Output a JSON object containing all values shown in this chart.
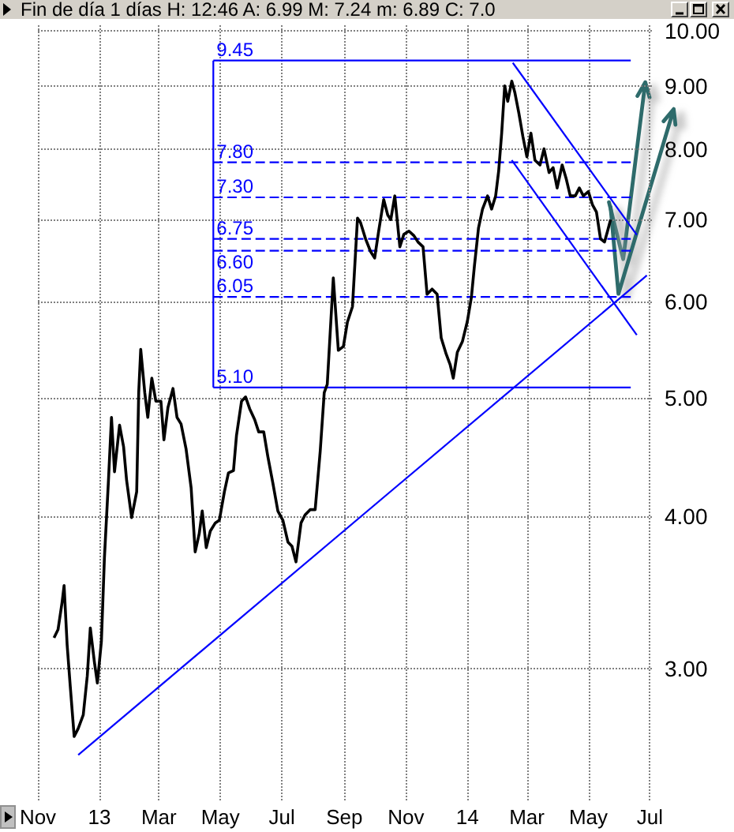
{
  "chart_data": {
    "type": "line",
    "title": "Fin de día 1 días H: 12:46 A: 6.99 M: 7.24 m: 6.89 C: 7.0",
    "log": "y",
    "grid": true,
    "marker": "none",
    "line_style": "solid",
    "xlim": [
      "2012-11-01",
      "2014-07-03"
    ],
    "xticks": [
      {
        "value": "2012-11-01",
        "label": "Nov"
      },
      {
        "value": "2013-01-01",
        "label": "13"
      },
      {
        "value": "2013-03-01",
        "label": "Mar"
      },
      {
        "value": "2013-05-01",
        "label": "May"
      },
      {
        "value": "2013-07-01",
        "label": "Jul"
      },
      {
        "value": "2013-09-01",
        "label": "Sep"
      },
      {
        "value": "2013-11-01",
        "label": "Nov"
      },
      {
        "value": "2014-01-01",
        "label": "14"
      },
      {
        "value": "2014-03-01",
        "label": "Mar"
      },
      {
        "value": "2014-05-01",
        "label": "May"
      },
      {
        "value": "2014-07-01",
        "label": "Jul"
      }
    ],
    "ylim": [
      2.34,
      10.1
    ],
    "yticks": [
      {
        "value": 3,
        "label": "3.00"
      },
      {
        "value": 4,
        "label": "4.00"
      },
      {
        "value": 5,
        "label": "5.00"
      },
      {
        "value": 6,
        "label": "6.00"
      },
      {
        "value": 7,
        "label": "7.00"
      },
      {
        "value": 8,
        "label": "8.00"
      },
      {
        "value": 9,
        "label": "9.00"
      },
      {
        "value": 10,
        "label": "10.00"
      }
    ],
    "series": [
      {
        "color": "#000000",
        "x": [
          "2012-11-17",
          "2012-11-21",
          "2012-11-25",
          "2012-11-27",
          "2012-11-30",
          "2012-12-03",
          "2012-12-07",
          "2012-12-11",
          "2012-12-16",
          "2012-12-20",
          "2012-12-23",
          "2012-12-27",
          "2012-12-30",
          "2013-01-03",
          "2013-01-06",
          "2013-01-10",
          "2013-01-13",
          "2013-01-16",
          "2013-01-21",
          "2013-01-25",
          "2013-01-28",
          "2013-02-02",
          "2013-02-07",
          "2013-02-09",
          "2013-02-11",
          "2013-02-15",
          "2013-02-18",
          "2013-02-22",
          "2013-02-26",
          "2013-03-03",
          "2013-03-06",
          "2013-03-10",
          "2013-03-15",
          "2013-03-19",
          "2013-03-23",
          "2013-03-28",
          "2013-04-02",
          "2013-04-06",
          "2013-04-10",
          "2013-04-13",
          "2013-04-17",
          "2013-04-21",
          "2013-04-26",
          "2013-04-30",
          "2013-05-05",
          "2013-05-09",
          "2013-05-14",
          "2013-05-17",
          "2013-05-22",
          "2013-05-26",
          "2013-05-30",
          "2013-06-04",
          "2013-06-08",
          "2013-06-13",
          "2013-06-17",
          "2013-06-22",
          "2013-06-27",
          "2013-07-02",
          "2013-07-07",
          "2013-07-11",
          "2013-07-15",
          "2013-07-20",
          "2013-07-24",
          "2013-07-29",
          "2013-08-03",
          "2013-08-08",
          "2013-08-12",
          "2013-08-15",
          "2013-08-21",
          "2013-08-26",
          "2013-08-31",
          "2013-09-04",
          "2013-09-09",
          "2013-09-14",
          "2013-09-17",
          "2013-09-22",
          "2013-09-27",
          "2013-10-01",
          "2013-10-05",
          "2013-10-10",
          "2013-10-14",
          "2013-10-17",
          "2013-10-21",
          "2013-10-26",
          "2013-10-30",
          "2013-11-04",
          "2013-11-09",
          "2013-11-13",
          "2013-11-18",
          "2013-11-22",
          "2013-11-27",
          "2013-12-02",
          "2013-12-06",
          "2013-12-11",
          "2013-12-15",
          "2013-12-18",
          "2013-12-22",
          "2013-12-27",
          "2014-01-01",
          "2014-01-05",
          "2014-01-08",
          "2014-01-12",
          "2014-01-16",
          "2014-01-21",
          "2014-01-25",
          "2014-01-29",
          "2014-02-01",
          "2014-02-04",
          "2014-02-07",
          "2014-02-10",
          "2014-02-14",
          "2014-02-17",
          "2014-02-21",
          "2014-02-25",
          "2014-03-01",
          "2014-03-05",
          "2014-03-09",
          "2014-03-14",
          "2014-03-18",
          "2014-03-23",
          "2014-03-27",
          "2014-03-31",
          "2014-04-05",
          "2014-04-09",
          "2014-04-13",
          "2014-04-18",
          "2014-04-22",
          "2014-04-26",
          "2014-05-01",
          "2014-05-05",
          "2014-05-09",
          "2014-05-13",
          "2014-05-17",
          "2014-05-20",
          "2014-05-23"
        ],
        "values": [
          3.18,
          3.23,
          3.4,
          3.51,
          3.14,
          2.91,
          2.64,
          2.68,
          2.75,
          2.96,
          3.24,
          3.04,
          2.92,
          3.16,
          3.7,
          4.28,
          4.82,
          4.35,
          4.75,
          4.56,
          4.28,
          3.99,
          4.19,
          5.05,
          5.48,
          5.05,
          4.82,
          5.19,
          4.97,
          4.97,
          4.62,
          4.91,
          5.09,
          4.82,
          4.76,
          4.54,
          4.22,
          3.74,
          3.87,
          4.04,
          3.77,
          3.89,
          3.95,
          3.97,
          4.19,
          4.34,
          4.36,
          4.66,
          4.97,
          5.01,
          4.9,
          4.8,
          4.69,
          4.69,
          4.48,
          4.26,
          4.04,
          3.97,
          3.81,
          3.78,
          3.67,
          3.95,
          4.01,
          4.05,
          4.05,
          4.52,
          5.05,
          5.13,
          6.27,
          5.47,
          5.51,
          5.77,
          5.94,
          7.02,
          6.96,
          6.75,
          6.59,
          6.51,
          6.85,
          7.27,
          7.06,
          7.0,
          7.32,
          6.65,
          6.81,
          6.85,
          6.79,
          6.71,
          6.65,
          6.08,
          6.14,
          6.08,
          5.6,
          5.43,
          5.32,
          5.19,
          5.45,
          5.56,
          5.78,
          6.05,
          6.42,
          6.89,
          7.14,
          7.32,
          7.14,
          7.32,
          7.67,
          8.24,
          9.01,
          8.75,
          9.09,
          8.9,
          8.56,
          8.19,
          7.88,
          8.24,
          7.83,
          7.76,
          8.0,
          7.65,
          7.72,
          7.43,
          7.76,
          7.56,
          7.32,
          7.32,
          7.43,
          7.32,
          7.38,
          7.2,
          7.1,
          6.75,
          6.71,
          6.85,
          7.0
        ]
      },
      {
        "color": "#0000ff",
        "x": [
          "2013-04-24",
          "2014-06-12"
        ],
        "values": [
          9.45,
          9.45
        ],
        "value_labels": [
          "9.45",
          null
        ]
      },
      {
        "color": "#0000ff",
        "x": [
          "2013-04-24",
          "2014-06-12"
        ],
        "values": [
          7.8,
          7.8
        ],
        "value_labels": [
          "7.80",
          null
        ],
        "line_style": "dashed"
      },
      {
        "color": "#0000ff",
        "x": [
          "2013-04-24",
          "2014-06-12"
        ],
        "values": [
          7.3,
          7.3
        ],
        "value_labels": [
          "7.30",
          null
        ],
        "line_style": "dashed"
      },
      {
        "color": "#0000ff",
        "x": [
          "2013-04-24",
          "2014-06-12"
        ],
        "values": [
          6.75,
          6.75
        ],
        "value_labels": [
          "6.75",
          null
        ],
        "line_style": "dashed"
      },
      {
        "color": "#0000ff",
        "x": [
          "2013-04-24",
          "2014-06-12"
        ],
        "values": [
          6.6,
          6.6
        ],
        "value_labels": [
          "6.60",
          null
        ],
        "line_style": "dashed"
      },
      {
        "color": "#0000ff",
        "x": [
          "2013-04-24",
          "2014-06-12"
        ],
        "values": [
          6.05,
          6.05
        ],
        "value_labels": [
          "6.05",
          null
        ],
        "line_style": "dashed"
      },
      {
        "color": "#0000ff",
        "x": [
          "2013-04-24",
          "2014-06-12"
        ],
        "values": [
          5.1,
          5.1
        ],
        "value_labels": [
          "5.10",
          null
        ]
      },
      {
        "color": "#0000ff",
        "x": [
          "2013-04-24",
          "2013-04-24"
        ],
        "values": [
          5.1,
          9.45
        ]
      },
      {
        "color": "#0000ff",
        "x": [
          "2012-12-11",
          "2014-06-28"
        ],
        "values": [
          2.55,
          6.3
        ]
      },
      {
        "color": "#0000ff",
        "x": [
          "2014-02-15",
          "2014-06-18"
        ],
        "values": [
          9.41,
          6.8
        ]
      },
      {
        "color": "#0000ff",
        "x": [
          "2014-02-14",
          "2014-06-18"
        ],
        "values": [
          7.83,
          5.63
        ]
      }
    ]
  }
}
